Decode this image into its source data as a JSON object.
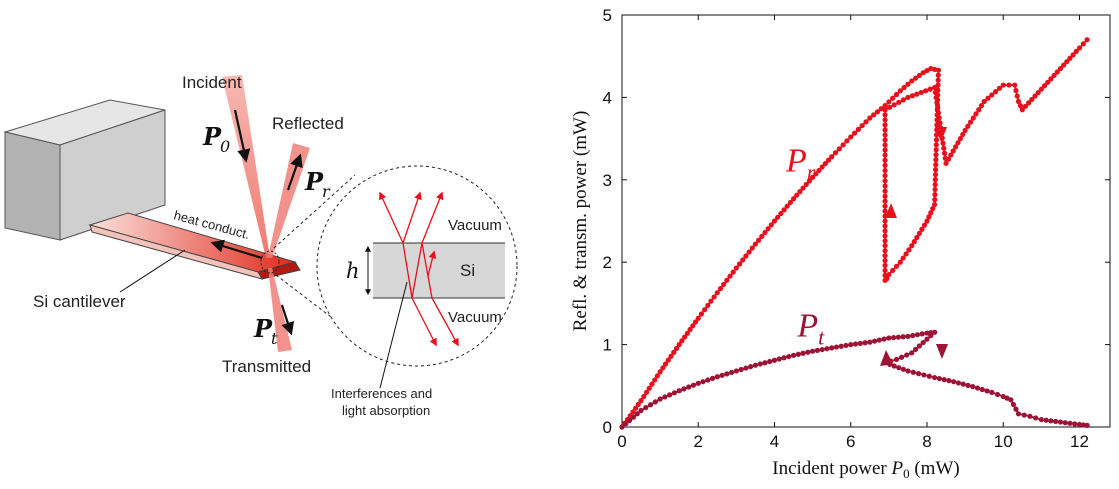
{
  "diagram": {
    "incident_label": "Incident",
    "reflected_label": "Reflected",
    "transmitted_label": "Transmitted",
    "p0_label": "P",
    "p0_sub": "0",
    "pr_label": "P",
    "pr_sub": "r",
    "pt_label": "P",
    "pt_sub": "t",
    "heat_label": "heat conduct.",
    "cantilever_label": "Si cantilever",
    "vacuum_top": "Vacuum",
    "vacuum_bottom": "Vacuum",
    "si_label": "Si",
    "h_label": "h",
    "interference_line1": "Interferences and",
    "interference_line2": "light absorption"
  },
  "colors": {
    "reflected": "#e8101c",
    "transmitted": "#9e1236",
    "beam": "#f07a72",
    "cantilever": "#e23a2c",
    "block": "#d0d0d0"
  },
  "chart_data": {
    "type": "line",
    "xlabel_prefix": "Incident power ",
    "xlabel_var": "P",
    "xlabel_sub": "0",
    "xlabel_unit": " (mW)",
    "ylabel": "Refl. & transm. power (mW)",
    "xlim": [
      0,
      12.8
    ],
    "ylim": [
      0,
      5
    ],
    "xticks": [
      0,
      2,
      4,
      6,
      8,
      10,
      12
    ],
    "yticks": [
      0,
      1,
      2,
      3,
      4,
      5
    ],
    "grid": false,
    "series": [
      {
        "name": "P_r",
        "label_var": "P",
        "label_sub": "r",
        "color": "#e8101c",
        "x": [
          0,
          0.5,
          1,
          1.5,
          2,
          2.5,
          3,
          3.5,
          4,
          4.5,
          5,
          5.5,
          6,
          6.5,
          6.9,
          7.3,
          7.6,
          7.9,
          8.1,
          8.3,
          8.2,
          8.0,
          7.6,
          7.3,
          7.0,
          6.95,
          6.9,
          6.9,
          6.9,
          6.9,
          7.5,
          8.2,
          8.5,
          9.0,
          9.5,
          10.0,
          10.3,
          10.4,
          10.5,
          11.0,
          11.5,
          12.0,
          12.2
        ],
        "y": [
          0,
          0.32,
          0.67,
          1.0,
          1.32,
          1.63,
          1.93,
          2.22,
          2.5,
          2.77,
          3.03,
          3.28,
          3.52,
          3.75,
          3.9,
          4.08,
          4.2,
          4.3,
          4.35,
          4.33,
          2.7,
          2.5,
          2.2,
          2.0,
          1.85,
          1.8,
          1.78,
          2.8,
          3.3,
          3.85,
          4.0,
          4.12,
          3.2,
          3.6,
          3.95,
          4.15,
          4.15,
          3.95,
          3.85,
          4.1,
          4.35,
          4.6,
          4.7
        ]
      },
      {
        "name": "P_t",
        "label_var": "P",
        "label_sub": "t",
        "color": "#9e1236",
        "x": [
          0,
          0.5,
          1,
          1.5,
          2,
          2.5,
          3,
          3.5,
          4,
          4.5,
          5,
          5.5,
          6,
          6.5,
          7.0,
          7.5,
          8.0,
          8.2,
          7.6,
          7.2,
          6.9,
          7.5,
          8.2,
          8.7,
          9.2,
          9.7,
          10.0,
          10.2,
          10.4,
          10.7,
          11.0,
          11.5,
          12.0,
          12.2
        ],
        "y": [
          0,
          0.2,
          0.34,
          0.44,
          0.53,
          0.61,
          0.68,
          0.75,
          0.81,
          0.87,
          0.92,
          0.96,
          1.0,
          1.03,
          1.08,
          1.1,
          1.14,
          1.15,
          0.9,
          0.82,
          0.78,
          0.68,
          0.6,
          0.55,
          0.49,
          0.42,
          0.37,
          0.33,
          0.16,
          0.13,
          0.09,
          0.06,
          0.03,
          0.02
        ]
      }
    ]
  }
}
